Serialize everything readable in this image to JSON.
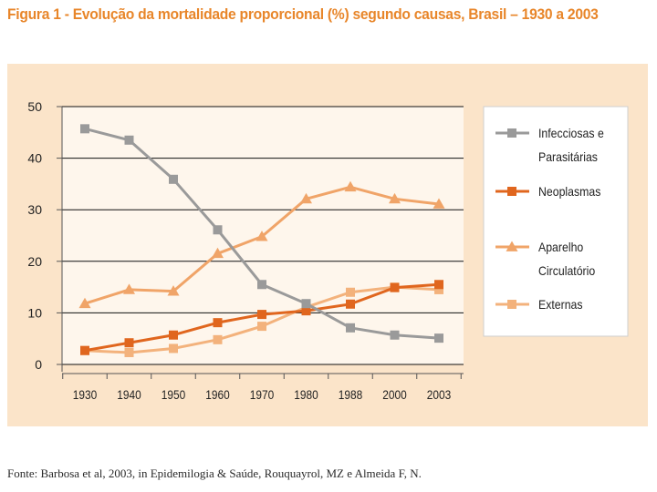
{
  "figure": {
    "title": "Figura 1 - Evolução da mortalidade proporcional (%) segundo causas, Brasil – 1930 a 2003",
    "source": "Fonte: Barbosa et al, 2003, in Epidemilogia & Saúde, Rouquayrol, MZ e Almeida F, N."
  },
  "colors": {
    "panel_bg": "#fbe4c9",
    "plot_bg": "#fef6ec",
    "title": "#e8862a",
    "grid": "#111111",
    "infecciosas": "#9a9a9a",
    "neoplasmas": "#e0661e",
    "circulatorio": "#f0a468",
    "externas": "#f3b27c"
  },
  "chart_data": {
    "type": "line",
    "title": "",
    "xlabel": "",
    "ylabel": "",
    "categories": [
      "1930",
      "1940",
      "1950",
      "1960",
      "1970",
      "1980",
      "1988",
      "2000",
      "2003"
    ],
    "ylim": [
      0,
      50
    ],
    "yticks": [
      "0",
      "10",
      "20",
      "30",
      "40",
      "50"
    ],
    "grid": true,
    "legend_position": "right",
    "series": [
      {
        "key": "infecciosas",
        "name_lines": [
          "Infecciosas e",
          "Parasitárias"
        ],
        "marker": "square",
        "values": [
          45.7,
          43.5,
          35.9,
          26.1,
          15.5,
          11.8,
          7.1,
          5.7,
          5.1
        ]
      },
      {
        "key": "neoplasmas",
        "name_lines": [
          "Neoplasmas"
        ],
        "marker": "square",
        "values": [
          2.7,
          4.2,
          5.7,
          8.1,
          9.7,
          10.4,
          11.7,
          14.9,
          15.5
        ]
      },
      {
        "key": "circulatorio",
        "name_lines": [
          "Aparelho",
          "Circulatório"
        ],
        "marker": "triangle",
        "values": [
          11.8,
          14.5,
          14.2,
          21.5,
          24.8,
          32.1,
          34.4,
          32.1,
          31.1
        ]
      },
      {
        "key": "externas",
        "name_lines": [
          "Externas"
        ],
        "marker": "square",
        "values": [
          2.7,
          2.3,
          3.1,
          4.8,
          7.4,
          11.1,
          14.0,
          15.0,
          14.5
        ]
      }
    ]
  }
}
